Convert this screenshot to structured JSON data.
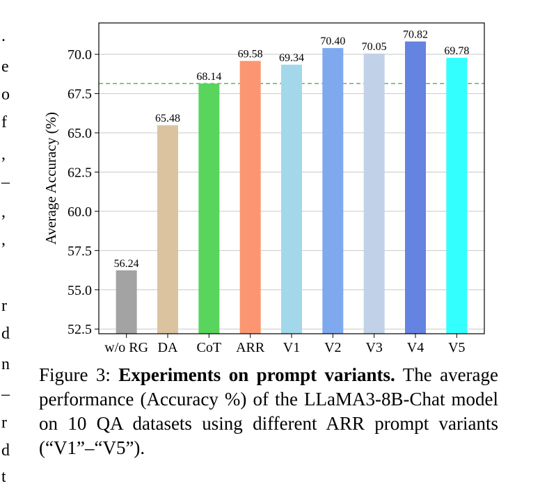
{
  "margin_chars": [
    ".",
    "e",
    "o",
    "f",
    ",",
    "–",
    ",",
    ",",
    "r",
    "d",
    "n",
    "–",
    "r",
    "d",
    "t"
  ],
  "chart_data": {
    "type": "bar",
    "categories": [
      "w/o RG",
      "DA",
      "CoT",
      "ARR",
      "V1",
      "V2",
      "V3",
      "V4",
      "V5"
    ],
    "values": [
      56.24,
      65.48,
      68.14,
      69.58,
      69.34,
      70.4,
      70.05,
      70.82,
      69.78
    ],
    "value_labels": [
      "56.24",
      "65.48",
      "68.14",
      "69.58",
      "69.34",
      "70.40",
      "70.05",
      "70.82",
      "69.78"
    ],
    "colors": [
      "#a3a3a3",
      "#dbc3a0",
      "#59d45c",
      "#fc9672",
      "#a2d8ea",
      "#7fa9ef",
      "#c1d1e7",
      "#6583e0",
      "#33ffff"
    ],
    "ylabel": "Average Accuracy (%)",
    "xlabel": "",
    "ylim": [
      52.2,
      72.0
    ],
    "yticks": [
      52.5,
      55.0,
      57.5,
      60.0,
      62.5,
      65.0,
      67.5,
      70.0
    ],
    "ytick_labels": [
      "52.5",
      "55.0",
      "57.5",
      "60.0",
      "62.5",
      "65.0",
      "67.5",
      "70.0"
    ],
    "grid": "horizontal",
    "reference_line": {
      "value": 68.14,
      "color": "#4caf50",
      "style": "dashed"
    }
  },
  "caption": {
    "label": "Figure 3:",
    "bold": "Experiments on prompt variants.",
    "text": "The average performance (Accuracy %) of the LLaMA3-8B-Chat model on 10 QA datasets using different ARR prompt variants (“V1”–“V5”)."
  }
}
